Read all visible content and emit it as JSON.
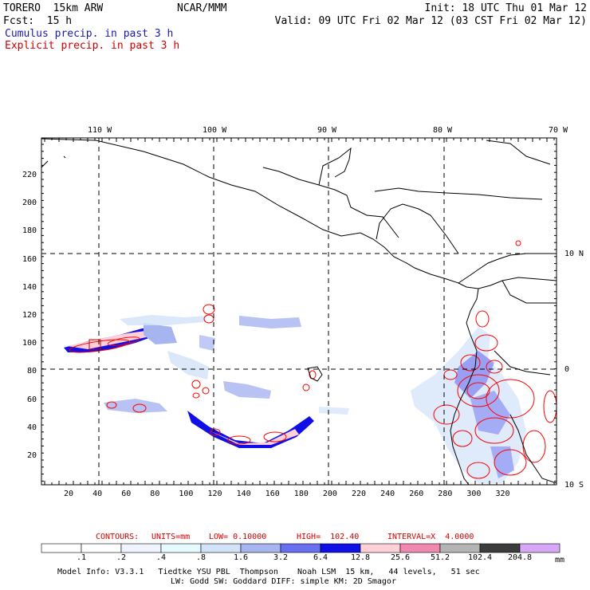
{
  "header": {
    "model": "TORERO  15km ARW",
    "org": "NCAR/MMM",
    "init": "Init: 18 UTC Thu 01 Mar 12",
    "fcst": "Fcst:  15 h",
    "valid": "Valid: 09 UTC Fri 02 Mar 12 (03 CST Fri 02 Mar 12)",
    "field1": "Cumulus precip. in past 3 h",
    "field2": "Explicit precip. in past 3 h"
  },
  "colors": {
    "field1": "#1a1aa8",
    "field2": "#d00000",
    "contour": "#ff0000",
    "grid": "#000000"
  },
  "map": {
    "lon_labels": [
      "110 W",
      "100 W",
      "90 W",
      "80 W",
      "70 W"
    ],
    "lat_labels": [
      "10 N",
      "0",
      "10 S"
    ],
    "x_ticks": [
      "20",
      "40",
      "60",
      "80",
      "100",
      "120",
      "140",
      "160",
      "180",
      "200",
      "220",
      "240",
      "260",
      "280",
      "300",
      "320"
    ],
    "y_ticks": [
      "20",
      "40",
      "60",
      "80",
      "100",
      "120",
      "140",
      "160",
      "180",
      "200",
      "220"
    ],
    "grid_lines": "dashed lat/lon",
    "coastlines": "Mexico, Central America, northern South America"
  },
  "contour_info": {
    "label": "CONTOURS:",
    "units": "UNITS=mm",
    "low": "LOW= 0.10000",
    "high": "HIGH=  102.40",
    "interval": "INTERVAL=X  4.0000"
  },
  "colorbar": {
    "labels": [
      ".1",
      ".2",
      ".4",
      ".8",
      "1.6",
      "3.2",
      "6.4",
      "12.8",
      "25.6",
      "51.2",
      "102.4",
      "204.8"
    ],
    "unit": "mm",
    "colors": [
      "#ffffff",
      "#ffffff",
      "#f0f4ff",
      "#e6fbff",
      "#d2e2f8",
      "#a6b4f0",
      "#6a6ef0",
      "#1010e6",
      "#ffd0d8",
      "#f088b0",
      "#b4b4b4",
      "#3c3c3c",
      "#d8a8f8"
    ]
  },
  "footer": {
    "line1": "Model Info: V3.3.1   Tiedtke YSU PBL  Thompson    Noah LSM  15 km,   44 levels,   51 sec",
    "line2": "LW: Godd SW: Goddard DIFF: simple KM: 2D Smagor"
  }
}
